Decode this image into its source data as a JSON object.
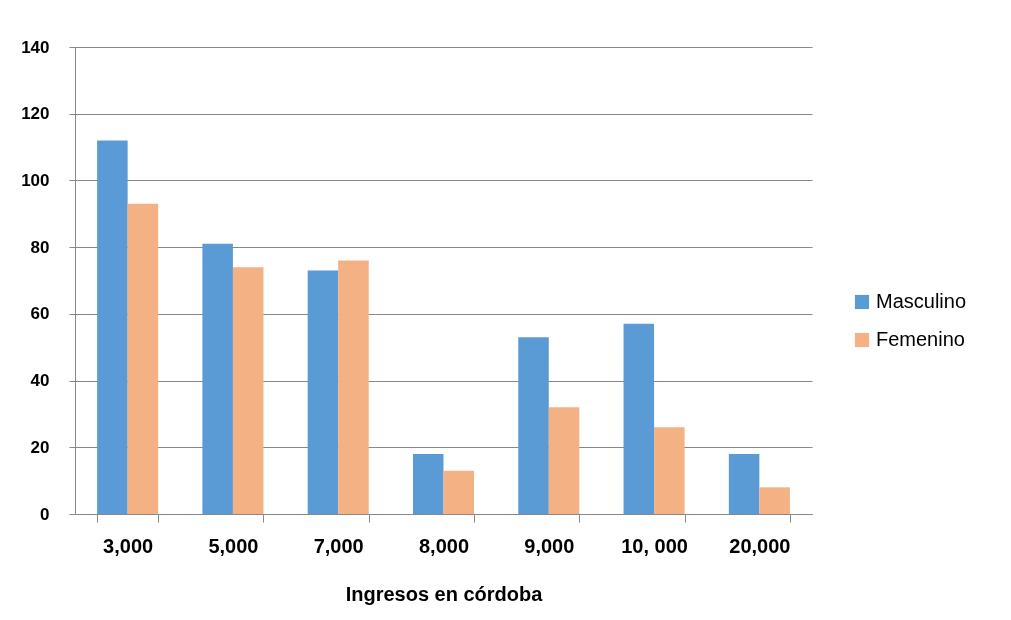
{
  "chart_data": {
    "type": "bar",
    "xlabel": "Ingresos en córdoba",
    "categories": [
      "3,000",
      "5,000",
      "7,000",
      "8,000",
      "9,000",
      "10, 000",
      "20,000"
    ],
    "series": [
      {
        "name": "Masculino",
        "color": "#5b9bd5",
        "values": [
          112,
          81,
          73,
          18,
          53,
          57,
          18
        ]
      },
      {
        "name": "Femenino",
        "color": "#f4b183",
        "values": [
          93,
          74,
          76,
          13,
          32,
          26,
          8
        ]
      }
    ],
    "ylim": [
      0,
      140
    ],
    "yticks": [
      0,
      20,
      40,
      60,
      80,
      100,
      120,
      140
    ],
    "grid": "y",
    "legend": "right"
  }
}
